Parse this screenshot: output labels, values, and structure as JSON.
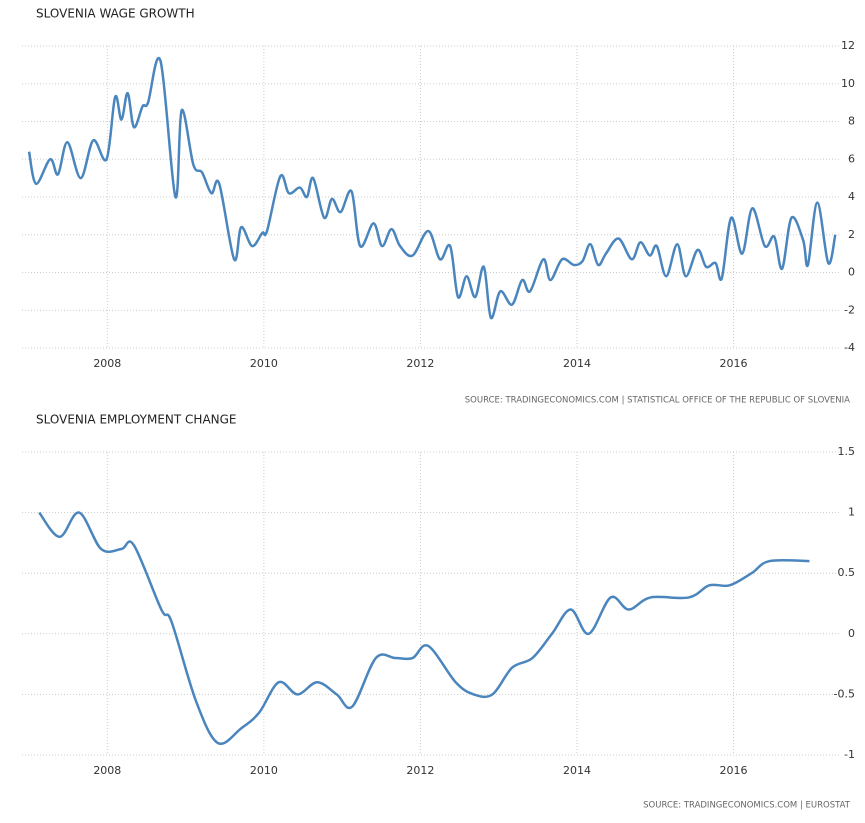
{
  "chart_data": [
    {
      "type": "line",
      "title": "SLOVENIA WAGE GROWTH",
      "source": "SOURCE: TRADINGECONOMICS.COM | STATISTICAL OFFICE OF THE REPUBLIC OF SLOVENIA",
      "xlim": [
        2006.91,
        2017.36
      ],
      "xticks": [
        2008,
        2010,
        2012,
        2014,
        2016
      ],
      "ylim": [
        -4,
        12
      ],
      "yticks": [
        -4,
        -2,
        0,
        2,
        4,
        6,
        8,
        10,
        12
      ],
      "grid": true,
      "series": [
        {
          "name": "Wage growth",
          "color": "#4a86bd",
          "x": [
            2007.0,
            2007.09,
            2007.27,
            2007.37,
            2007.49,
            2007.66,
            2007.82,
            2007.99,
            2008.1,
            2008.18,
            2008.26,
            2008.34,
            2008.45,
            2008.52,
            2008.68,
            2008.87,
            2008.95,
            2009.1,
            2009.21,
            2009.33,
            2009.43,
            2009.62,
            2009.71,
            2009.85,
            2009.98,
            2010.04,
            2010.21,
            2010.32,
            2010.46,
            2010.55,
            2010.63,
            2010.77,
            2010.87,
            2010.98,
            2011.12,
            2011.23,
            2011.4,
            2011.51,
            2011.63,
            2011.74,
            2011.9,
            2012.1,
            2012.25,
            2012.38,
            2012.48,
            2012.59,
            2012.7,
            2012.81,
            2012.9,
            2013.02,
            2013.17,
            2013.3,
            2013.4,
            2013.57,
            2013.66,
            2013.81,
            2013.96,
            2014.07,
            2014.17,
            2014.27,
            2014.37,
            2014.53,
            2014.7,
            2014.81,
            2014.93,
            2015.02,
            2015.14,
            2015.28,
            2015.39,
            2015.54,
            2015.65,
            2015.77,
            2015.85,
            2015.97,
            2016.11,
            2016.24,
            2016.4,
            2016.52,
            2016.62,
            2016.74,
            2016.89,
            2016.95,
            2017.07,
            2017.21,
            2017.3
          ],
          "values": [
            6.4,
            4.7,
            6,
            5.2,
            6.9,
            5,
            7,
            6,
            9.3,
            8.1,
            9.5,
            7.7,
            8.8,
            9,
            11.2,
            4,
            8.6,
            5.7,
            5.3,
            4.2,
            4.7,
            0.7,
            2.4,
            1.4,
            2.1,
            2.2,
            5.1,
            4.2,
            4.5,
            4,
            5,
            2.9,
            3.9,
            3.2,
            4.3,
            1.4,
            2.6,
            1.4,
            2.3,
            1.4,
            0.9,
            2.2,
            0.7,
            1.4,
            -1.3,
            -0.2,
            -1.3,
            0.3,
            -2.4,
            -1,
            -1.7,
            -0.4,
            -1,
            0.7,
            -0.4,
            0.7,
            0.4,
            0.6,
            1.5,
            0.4,
            1,
            1.8,
            0.7,
            1.6,
            0.9,
            1.4,
            -0.2,
            1.5,
            -0.2,
            1.2,
            0.3,
            0.5,
            -0.3,
            2.9,
            1,
            3.4,
            1.4,
            1.9,
            0.2,
            2.9,
            1.7,
            0.4,
            3.7,
            0.5,
            2
          ]
        }
      ]
    },
    {
      "type": "line",
      "title": "SLOVENIA EMPLOYMENT CHANGE",
      "source": "SOURCE: TRADINGECONOMICS.COM | EUROSTAT",
      "xlim": [
        2006.91,
        2017.36
      ],
      "xticks": [
        2008,
        2010,
        2012,
        2014,
        2016
      ],
      "ylim": [
        -1,
        1.5
      ],
      "yticks": [
        -1,
        -0.5,
        0,
        0.5,
        1,
        1.5
      ],
      "grid": true,
      "series": [
        {
          "name": "Employment change",
          "color": "#4a86bd",
          "x": [
            2007.13,
            2007.39,
            2007.64,
            2007.92,
            2008.18,
            2008.34,
            2008.69,
            2008.82,
            2009.13,
            2009.41,
            2009.71,
            2009.94,
            2010.19,
            2010.43,
            2010.68,
            2010.93,
            2011.13,
            2011.43,
            2011.68,
            2011.9,
            2012.1,
            2012.45,
            2012.68,
            2012.92,
            2013.17,
            2013.43,
            2013.68,
            2013.92,
            2014.15,
            2014.43,
            2014.66,
            2014.94,
            2015.43,
            2015.69,
            2015.95,
            2016.23,
            2016.46,
            2016.97
          ],
          "values": [
            1,
            0.8,
            1,
            0.7,
            0.7,
            0.73,
            0.2,
            0.1,
            -0.55,
            -0.9,
            -0.78,
            -0.65,
            -0.4,
            -0.5,
            -0.4,
            -0.5,
            -0.6,
            -0.2,
            -0.2,
            -0.2,
            -0.1,
            -0.4,
            -0.5,
            -0.5,
            -0.28,
            -0.2,
            0,
            0.2,
            0,
            0.3,
            0.2,
            0.3,
            0.3,
            0.4,
            0.4,
            0.5,
            0.6,
            0.6
          ]
        }
      ]
    }
  ]
}
